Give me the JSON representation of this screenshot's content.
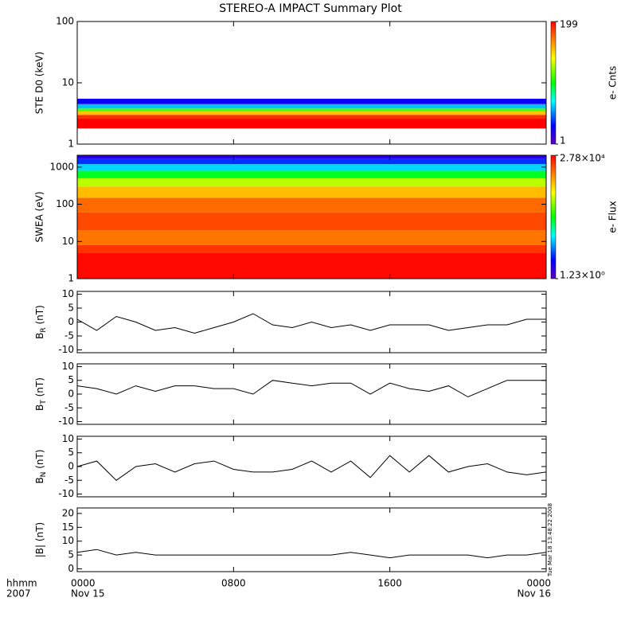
{
  "title": "STEREO-A IMPACT Summary Plot",
  "x_axis_labels": [
    "hhmm",
    "2007"
  ],
  "xlim": [
    0,
    24
  ],
  "xticks": [
    {
      "value": 0,
      "label": "0000"
    },
    {
      "value": 8,
      "label": "0800"
    },
    {
      "value": 16,
      "label": "1600"
    },
    {
      "value": 24,
      "label": "0000"
    }
  ],
  "date_ticks": [
    {
      "value": 0,
      "label": "Nov 15"
    },
    {
      "value": 24,
      "label": "Nov 16"
    }
  ],
  "timestamp": "Tue Mar 18 13:48:22 2008",
  "chart_data": [
    {
      "type": "heatmap",
      "ylabel": "STE D0 (keV)",
      "ylog": true,
      "ylim": [
        1,
        100
      ],
      "yticks": [
        1,
        10,
        100
      ],
      "energy_bins": [
        1.8,
        2.6,
        3.0,
        3.4,
        3.8,
        4.5,
        5.5
      ],
      "values": [
        199,
        150,
        60,
        20,
        5,
        2
      ],
      "colorbar": {
        "label": "e- Cnts",
        "log": true,
        "lim": [
          1,
          199
        ],
        "ticks": [
          199,
          1
        ]
      }
    },
    {
      "type": "heatmap",
      "ylabel": "SWEA (eV)",
      "ylog": true,
      "ylim": [
        1,
        2080
      ],
      "yticks": [
        1,
        10,
        100,
        1000
      ],
      "energy_bins": [
        1,
        5,
        8,
        20,
        60,
        150,
        300,
        500,
        800,
        1200,
        1700,
        2080
      ],
      "values": [
        25000,
        15000,
        7000,
        12000,
        8000,
        3000,
        800,
        150,
        30,
        8,
        3
      ],
      "colorbar": {
        "label": "e- Flux",
        "log": true,
        "lim": [
          1.23,
          27800
        ],
        "ticks": [
          {
            "value": 27800,
            "label": "2.78×10⁴"
          },
          {
            "value": 1.23,
            "label": "1.23×10⁰"
          }
        ]
      }
    },
    {
      "type": "line",
      "ylabel": {
        "base": "B",
        "sub": "R",
        "unit": " (nT)"
      },
      "ylim": [
        -11,
        11
      ],
      "yticks": [
        10,
        5,
        0,
        -5,
        -10
      ],
      "color": "#000000",
      "x": [
        0,
        1,
        2,
        3,
        4,
        5,
        6,
        7,
        8,
        9,
        10,
        11,
        12,
        13,
        14,
        15,
        16,
        17,
        18,
        19,
        20,
        21,
        22,
        23,
        24
      ],
      "values": [
        1,
        -3,
        2,
        0,
        -3,
        -2,
        -4,
        -2,
        0,
        3,
        -1,
        -2,
        0,
        -2,
        -1,
        -3,
        -1,
        -1,
        -1,
        -3,
        -2,
        -1,
        -1,
        1,
        1
      ]
    },
    {
      "type": "line",
      "ylabel": {
        "base": "B",
        "sub": "T",
        "unit": " (nT)"
      },
      "ylim": [
        -11,
        11
      ],
      "yticks": [
        10,
        5,
        0,
        -5,
        -10
      ],
      "color": "#000000",
      "x": [
        0,
        1,
        2,
        3,
        4,
        5,
        6,
        7,
        8,
        9,
        10,
        11,
        12,
        13,
        14,
        15,
        16,
        17,
        18,
        19,
        20,
        21,
        22,
        23,
        24
      ],
      "values": [
        3,
        2,
        0,
        3,
        1,
        3,
        3,
        2,
        2,
        0,
        5,
        4,
        3,
        4,
        4,
        0,
        4,
        2,
        1,
        3,
        -1,
        2,
        5,
        5,
        5
      ]
    },
    {
      "type": "line",
      "ylabel": {
        "base": "B",
        "sub": "N",
        "unit": " (nT)"
      },
      "ylim": [
        -11,
        11
      ],
      "yticks": [
        10,
        5,
        0,
        -5,
        -10
      ],
      "color": "#000000",
      "x": [
        0,
        1,
        2,
        3,
        4,
        5,
        6,
        7,
        8,
        9,
        10,
        11,
        12,
        13,
        14,
        15,
        16,
        17,
        18,
        19,
        20,
        21,
        22,
        23,
        24
      ],
      "values": [
        0,
        2,
        -5,
        0,
        1,
        -2,
        1,
        2,
        -1,
        -2,
        -2,
        -1,
        2,
        -2,
        2,
        -4,
        4,
        -2,
        4,
        -2,
        0,
        1,
        -2,
        -3,
        -2
      ]
    },
    {
      "type": "line",
      "ylabel": {
        "base": "|B|",
        "sub": "",
        "unit": " (nT)"
      },
      "ylim": [
        -1,
        22
      ],
      "yticks": [
        0,
        5,
        10,
        15,
        20
      ],
      "color": "#000000",
      "x": [
        0,
        1,
        2,
        3,
        4,
        5,
        6,
        7,
        8,
        9,
        10,
        11,
        12,
        13,
        14,
        15,
        16,
        17,
        18,
        19,
        20,
        21,
        22,
        23,
        24
      ],
      "values": [
        6,
        7,
        5,
        6,
        5,
        5,
        5,
        5,
        5,
        5,
        5,
        5,
        5,
        5,
        6,
        5,
        4,
        5,
        5,
        5,
        5,
        4,
        5,
        5,
        6
      ]
    }
  ]
}
